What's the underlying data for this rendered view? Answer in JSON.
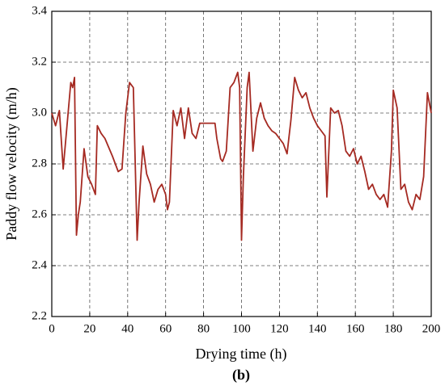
{
  "chart_data": {
    "type": "line",
    "x_label": "Drying time (h)",
    "y_label": "Paddy flow velocity (m/h)",
    "caption": "(b)",
    "xlim": [
      0,
      200
    ],
    "xticks": [
      0,
      20,
      40,
      60,
      80,
      100,
      120,
      140,
      160,
      180,
      200
    ],
    "ylim": [
      2.2,
      3.4
    ],
    "yticks": [
      2.2,
      2.4,
      2.6,
      2.8,
      {
        "value": 3,
        "label": "3.0"
      },
      3.2,
      3.4
    ],
    "grid": true,
    "series": [
      {
        "color": "#a52a22",
        "x": [
          0,
          2,
          4,
          6,
          8,
          10,
          11,
          12,
          13,
          14,
          15,
          17,
          19,
          21,
          23,
          24,
          26,
          28,
          32,
          35,
          37,
          39,
          41,
          43,
          45,
          46,
          48,
          50,
          52,
          54,
          56,
          58,
          60,
          61,
          62,
          64,
          66,
          68,
          70,
          72,
          74,
          76,
          78,
          82,
          86,
          87,
          89,
          90,
          92,
          94,
          96,
          98,
          99,
          100,
          101,
          103,
          104,
          106,
          108,
          110,
          112,
          114,
          116,
          118,
          120,
          122,
          124,
          126,
          128,
          130,
          132,
          134,
          136,
          138,
          140,
          142,
          144,
          145,
          147,
          149,
          151,
          153,
          155,
          157,
          159,
          161,
          163,
          165,
          167,
          169,
          171,
          173,
          175,
          177,
          179,
          180,
          182,
          184,
          186,
          188,
          190,
          192,
          194,
          196,
          198,
          200
        ],
        "values": [
          3.0,
          2.95,
          3.01,
          2.78,
          2.95,
          3.12,
          3.1,
          3.14,
          2.52,
          2.6,
          2.65,
          2.86,
          2.75,
          2.72,
          2.68,
          2.95,
          2.92,
          2.9,
          2.83,
          2.77,
          2.78,
          3.0,
          3.12,
          3.1,
          2.5,
          2.65,
          2.87,
          2.76,
          2.72,
          2.65,
          2.7,
          2.72,
          2.68,
          2.62,
          2.65,
          3.01,
          2.95,
          3.02,
          2.9,
          3.02,
          2.92,
          2.9,
          2.96,
          2.96,
          2.96,
          2.9,
          2.82,
          2.81,
          2.85,
          3.1,
          3.12,
          3.16,
          3.1,
          2.5,
          2.75,
          3.1,
          3.16,
          2.85,
          2.98,
          3.04,
          2.98,
          2.95,
          2.93,
          2.92,
          2.9,
          2.88,
          2.84,
          2.97,
          3.14,
          3.09,
          3.06,
          3.08,
          3.02,
          2.98,
          2.95,
          2.93,
          2.91,
          2.67,
          3.02,
          3.0,
          3.01,
          2.95,
          2.85,
          2.83,
          2.86,
          2.8,
          2.83,
          2.77,
          2.7,
          2.72,
          2.68,
          2.66,
          2.68,
          2.63,
          2.85,
          3.09,
          3.02,
          2.7,
          2.72,
          2.65,
          2.62,
          2.68,
          2.66,
          2.75,
          3.08,
          3.0
        ]
      }
    ]
  }
}
